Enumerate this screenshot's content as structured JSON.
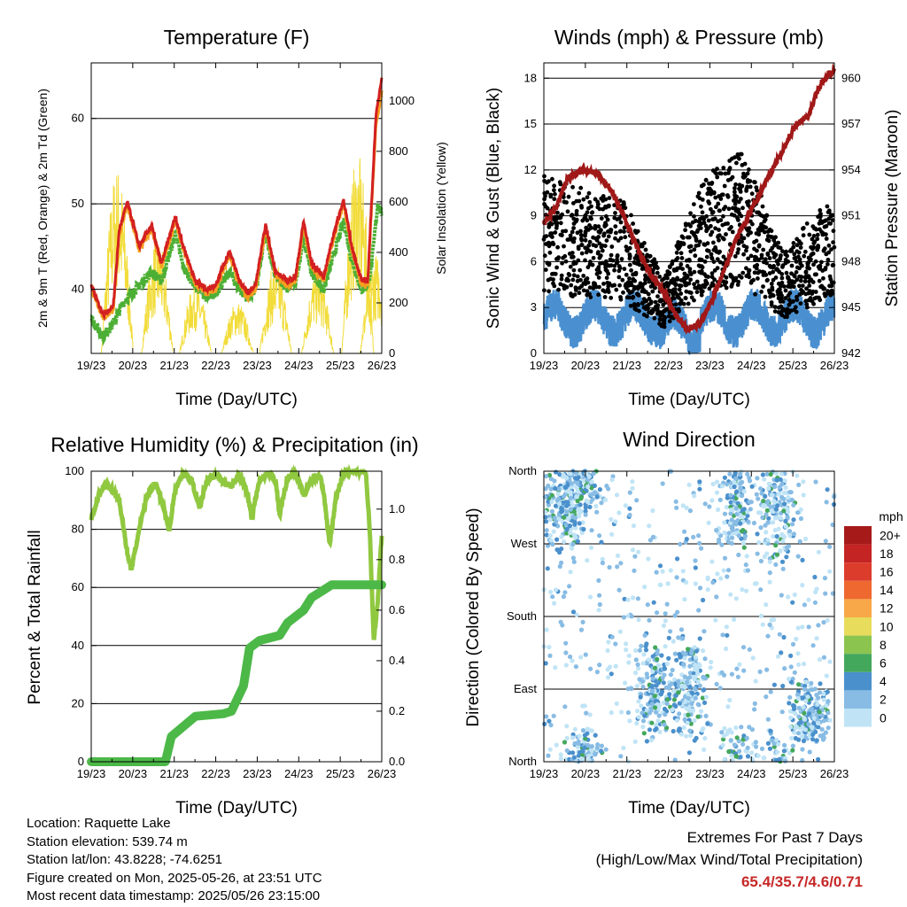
{
  "colors": {
    "temp2m": "#d32020",
    "temp9m": "#f5a020",
    "dewpoint": "#4caf35",
    "solar": "#f2dc3a",
    "gust": "#000000",
    "wind": "#4a90d0",
    "pressure": "#a01818",
    "rh": "#90c840",
    "precip": "#4cb848",
    "extremes": "#c62828"
  },
  "chart_data": [
    {
      "type": "line",
      "title": "Temperature (F)",
      "xlabel": "Time (Day/UTC)",
      "ylabel": "2m & 9m T (Red, Orange) & 2m Td (Green)",
      "y2label": "Solar Insolation (Yellow)",
      "xticks": [
        "19/23",
        "20/23",
        "21/23",
        "22/23",
        "23/23",
        "24/23",
        "25/23",
        "26/23"
      ],
      "yticks": [
        "40",
        "50",
        "60"
      ],
      "y2ticks": [
        "0",
        "200",
        "400",
        "600",
        "800",
        "1000"
      ],
      "ylim": [
        32.5,
        66.5
      ],
      "y2lim": [
        0,
        1150
      ],
      "grid_y": [
        40,
        50,
        60
      ],
      "series": [
        {
          "name": "2m T",
          "points": [
            [
              0,
              40.5
            ],
            [
              0.3,
              37
            ],
            [
              0.55,
              38
            ],
            [
              0.7,
              47
            ],
            [
              0.9,
              50.2
            ],
            [
              1.2,
              45
            ],
            [
              1.5,
              47.5
            ],
            [
              1.75,
              43
            ],
            [
              2.1,
              48.5
            ],
            [
              2.3,
              45
            ],
            [
              2.6,
              41
            ],
            [
              2.9,
              40
            ],
            [
              3.1,
              40.5
            ],
            [
              3.45,
              44.5
            ],
            [
              3.7,
              41
            ],
            [
              3.9,
              39.5
            ],
            [
              4.1,
              40.5
            ],
            [
              4.35,
              47.5
            ],
            [
              4.6,
              42
            ],
            [
              4.9,
              41
            ],
            [
              5.1,
              41.5
            ],
            [
              5.3,
              48
            ],
            [
              5.5,
              43
            ],
            [
              5.8,
              41.5
            ],
            [
              6.05,
              46.5
            ],
            [
              6.3,
              50.5
            ],
            [
              6.5,
              45
            ],
            [
              6.75,
              41
            ],
            [
              6.9,
              41
            ],
            [
              7.1,
              60
            ],
            [
              7.25,
              65
            ]
          ]
        },
        {
          "name": "9m T",
          "points": [
            [
              0,
              40.2
            ],
            [
              0.3,
              36.6
            ],
            [
              0.55,
              37.6
            ],
            [
              0.7,
              46.5
            ],
            [
              0.9,
              49.8
            ],
            [
              1.2,
              44.6
            ],
            [
              1.5,
              47
            ],
            [
              1.75,
              42.6
            ],
            [
              2.1,
              48
            ],
            [
              2.3,
              44.6
            ],
            [
              2.6,
              40.6
            ],
            [
              2.9,
              39.6
            ],
            [
              3.1,
              40
            ],
            [
              3.45,
              44
            ],
            [
              3.7,
              40.6
            ],
            [
              3.9,
              39.1
            ],
            [
              4.1,
              40
            ],
            [
              4.35,
              47
            ],
            [
              4.6,
              41.6
            ],
            [
              4.9,
              40.6
            ],
            [
              5.1,
              41
            ],
            [
              5.3,
              47.5
            ],
            [
              5.5,
              42.6
            ],
            [
              5.8,
              41
            ],
            [
              6.05,
              46
            ],
            [
              6.3,
              50
            ],
            [
              6.5,
              44.6
            ],
            [
              6.75,
              40.6
            ],
            [
              6.9,
              40.6
            ],
            [
              7.1,
              59
            ],
            [
              7.25,
              63
            ]
          ]
        },
        {
          "name": "2m Td",
          "points": [
            [
              0,
              36.5
            ],
            [
              0.3,
              34.5
            ],
            [
              0.55,
              36
            ],
            [
              0.8,
              38.5
            ],
            [
              1.1,
              40
            ],
            [
              1.5,
              42
            ],
            [
              1.75,
              41
            ],
            [
              2.1,
              46.5
            ],
            [
              2.3,
              42.5
            ],
            [
              2.6,
              40.5
            ],
            [
              2.9,
              39
            ],
            [
              3.1,
              39.5
            ],
            [
              3.45,
              42
            ],
            [
              3.7,
              40
            ],
            [
              3.9,
              39
            ],
            [
              4.1,
              40
            ],
            [
              4.35,
              46.5
            ],
            [
              4.6,
              41.5
            ],
            [
              4.9,
              40
            ],
            [
              5.1,
              41
            ],
            [
              5.3,
              46
            ],
            [
              5.5,
              42
            ],
            [
              5.8,
              40
            ],
            [
              6.05,
              44
            ],
            [
              6.3,
              48
            ],
            [
              6.5,
              43.5
            ],
            [
              6.75,
              40
            ],
            [
              6.9,
              40.5
            ],
            [
              7.0,
              43
            ],
            [
              7.15,
              50
            ],
            [
              7.25,
              49
            ]
          ]
        },
        {
          "name": "Solar",
          "peaks": [
            [
              0.65,
              680
            ],
            [
              1.65,
              420
            ],
            [
              2.6,
              250
            ],
            [
              3.65,
              190
            ],
            [
              4.6,
              330
            ],
            [
              5.65,
              310
            ],
            [
              6.65,
              720
            ],
            [
              7.1,
              360
            ]
          ]
        }
      ]
    },
    {
      "type": "scatter",
      "title": "Winds (mph) & Pressure (mb)",
      "xlabel": "Time (Day/UTC)",
      "ylabel": "Sonic Wind & Gust (Blue, Black)",
      "y2label": "Station Pressure (Maroon)",
      "xticks": [
        "19/23",
        "20/23",
        "21/23",
        "22/23",
        "23/23",
        "24/23",
        "25/23",
        "26/23"
      ],
      "yticks": [
        "0",
        "3",
        "6",
        "9",
        "12",
        "15",
        "18"
      ],
      "y2ticks": [
        "942",
        "945",
        "948",
        "951",
        "954",
        "957",
        "960"
      ],
      "ylim": [
        0,
        19
      ],
      "y2lim": [
        942,
        961
      ],
      "grid_y": [
        3,
        6,
        9,
        12,
        15,
        18
      ],
      "pressure": [
        [
          0,
          950.5
        ],
        [
          0.3,
          951.5
        ],
        [
          0.6,
          953.5
        ],
        [
          1.0,
          954
        ],
        [
          1.3,
          953.8
        ],
        [
          1.6,
          953
        ],
        [
          2.0,
          951
        ],
        [
          2.4,
          948.5
        ],
        [
          2.7,
          947
        ],
        [
          3.0,
          946
        ],
        [
          3.3,
          944.5
        ],
        [
          3.6,
          943.5
        ],
        [
          3.9,
          944
        ],
        [
          4.2,
          945.5
        ],
        [
          4.5,
          947.5
        ],
        [
          4.8,
          949.5
        ],
        [
          5.1,
          951
        ],
        [
          5.4,
          952.5
        ],
        [
          5.7,
          954
        ],
        [
          6.0,
          955.5
        ],
        [
          6.3,
          957
        ],
        [
          6.6,
          957.5
        ],
        [
          6.8,
          959
        ],
        [
          7.0,
          960
        ],
        [
          7.25,
          960.5
        ]
      ],
      "gust_levels": [
        [
          0,
          7
        ],
        [
          1,
          6.5
        ],
        [
          2,
          6
        ],
        [
          3,
          3
        ],
        [
          4,
          7
        ],
        [
          5,
          8
        ],
        [
          6,
          4
        ],
        [
          7,
          6
        ]
      ]
    },
    {
      "type": "line",
      "title": "Relative Humidity (%) & Precipitation (in)",
      "xlabel": "Time (Day/UTC)",
      "ylabel": "Percent & Total Rainfall",
      "xticks": [
        "19/23",
        "20/23",
        "21/23",
        "22/23",
        "23/23",
        "24/23",
        "25/23",
        "26/23"
      ],
      "yticks": [
        "0",
        "20",
        "40",
        "60",
        "80",
        "100"
      ],
      "y2ticks": [
        "0.0",
        "0.2",
        "0.4",
        "0.6",
        "0.8",
        "1.0"
      ],
      "ylim": [
        0,
        100
      ],
      "y2lim": [
        0,
        1.15
      ],
      "grid_y": [
        20,
        40,
        60,
        80
      ],
      "series": [
        {
          "name": "RH",
          "points": [
            [
              0,
              84
            ],
            [
              0.2,
              92
            ],
            [
              0.4,
              96
            ],
            [
              0.7,
              90
            ],
            [
              0.9,
              72
            ],
            [
              1.0,
              66
            ],
            [
              1.2,
              80
            ],
            [
              1.4,
              92
            ],
            [
              1.6,
              96
            ],
            [
              1.8,
              88
            ],
            [
              1.95,
              80
            ],
            [
              2.1,
              94
            ],
            [
              2.3,
              99
            ],
            [
              2.5,
              97
            ],
            [
              2.7,
              88
            ],
            [
              2.9,
              97
            ],
            [
              3.1,
              99
            ],
            [
              3.3,
              96
            ],
            [
              3.5,
              95
            ],
            [
              3.7,
              99
            ],
            [
              3.9,
              92
            ],
            [
              4.0,
              84
            ],
            [
              4.2,
              97
            ],
            [
              4.4,
              99
            ],
            [
              4.6,
              97
            ],
            [
              4.7,
              85
            ],
            [
              4.9,
              98
            ],
            [
              5.1,
              99
            ],
            [
              5.3,
              92
            ],
            [
              5.5,
              97
            ],
            [
              5.7,
              99
            ],
            [
              5.8,
              92
            ],
            [
              5.95,
              75
            ],
            [
              6.1,
              90
            ],
            [
              6.3,
              100
            ],
            [
              6.6,
              100
            ],
            [
              6.85,
              100
            ],
            [
              6.95,
              80
            ],
            [
              7.05,
              42
            ],
            [
              7.15,
              55
            ],
            [
              7.25,
              78
            ]
          ]
        },
        {
          "name": "Precip",
          "points": [
            [
              0,
              0
            ],
            [
              1.85,
              0
            ],
            [
              2.0,
              0.1
            ],
            [
              2.3,
              0.14
            ],
            [
              2.6,
              0.18
            ],
            [
              3.3,
              0.19
            ],
            [
              3.5,
              0.2
            ],
            [
              3.8,
              0.3
            ],
            [
              3.95,
              0.45
            ],
            [
              4.2,
              0.48
            ],
            [
              4.7,
              0.5
            ],
            [
              4.9,
              0.55
            ],
            [
              5.3,
              0.6
            ],
            [
              5.5,
              0.65
            ],
            [
              5.8,
              0.68
            ],
            [
              6.0,
              0.7
            ],
            [
              7.25,
              0.7
            ]
          ]
        }
      ]
    },
    {
      "type": "scatter",
      "title": "Wind Direction",
      "xlabel": "Time (Day/UTC)",
      "ylabel": "Direction (Colored By Speed)",
      "xticks": [
        "19/23",
        "20/23",
        "21/23",
        "22/23",
        "23/23",
        "24/23",
        "25/23",
        "26/23"
      ],
      "yticks": [
        "North",
        "East",
        "South",
        "West",
        "North"
      ],
      "legend_title": "mph",
      "legend_labels": [
        "20+",
        "18",
        "16",
        "14",
        "12",
        "10",
        "8",
        "6",
        "4",
        "2",
        "0"
      ],
      "legend_colors": [
        "#a61a1a",
        "#c42424",
        "#dc3c2c",
        "#ee6830",
        "#f8a848",
        "#e8dc5c",
        "#8cc450",
        "#44a85c",
        "#4a90cc",
        "#88bce4",
        "#c0e4f6"
      ],
      "clusters": [
        [
          0.5,
          310,
          40,
          30
        ],
        [
          1.0,
          355,
          40,
          20
        ],
        [
          2.8,
          90,
          50,
          40
        ],
        [
          3.6,
          90,
          50,
          35
        ],
        [
          4.8,
          330,
          60,
          50
        ],
        [
          5.8,
          320,
          60,
          40
        ],
        [
          6.6,
          60,
          40,
          30
        ]
      ]
    }
  ],
  "footer": {
    "location": "Location: Raquette Lake",
    "elevation": "Station elevation: 539.74 m",
    "latlon": "Station lat/lon: 43.8228; -74.6251",
    "created": "Figure created on Mon, 2025-05-26, at 23:51 UTC",
    "timestamp": "Most recent data timestamp: 2025/05/26 23:15:00"
  },
  "extremes": {
    "title": "Extremes For Past 7 Days",
    "subtitle": "(High/Low/Max Wind/Total Precipitation)",
    "values": "65.4/35.7/4.6/0.71"
  }
}
